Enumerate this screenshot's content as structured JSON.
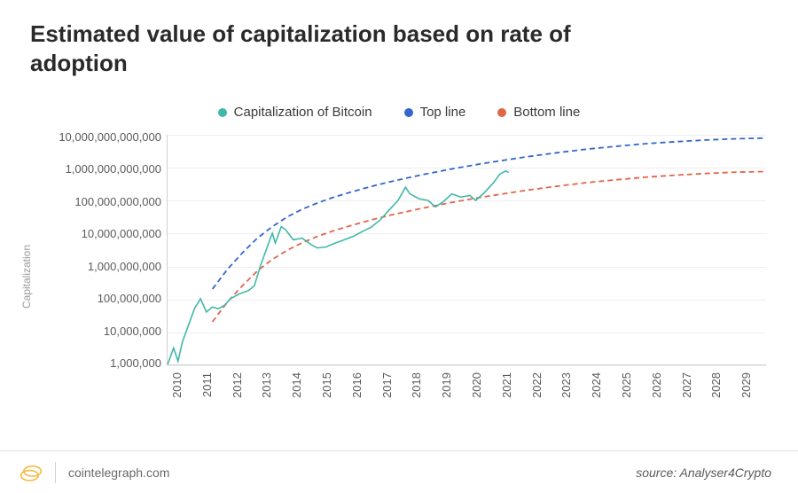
{
  "title": "Estimated value of capitalization based on rate of adoption",
  "legend": {
    "items": [
      {
        "label": "Capitalization of Bitcoin",
        "color": "#3fb8a8"
      },
      {
        "label": "Top line",
        "color": "#3366cc"
      },
      {
        "label": "Bottom line",
        "color": "#e06648"
      }
    ]
  },
  "chart": {
    "type": "line",
    "ylabel": "Capitalization",
    "yscale": "log",
    "ylim_log10": [
      6,
      13
    ],
    "ytick_labels": [
      "10,000,000,000,000",
      "1,000,000,000,000",
      "100,000,000,000",
      "10,000,000,000",
      "1,000,000,000",
      "100,000,000",
      "10,000,000",
      "1,000,000"
    ],
    "xlim": [
      2010,
      2030
    ],
    "xticks": [
      2010,
      2011,
      2012,
      2013,
      2014,
      2015,
      2016,
      2017,
      2018,
      2019,
      2020,
      2021,
      2022,
      2023,
      2024,
      2025,
      2026,
      2027,
      2028,
      2029
    ],
    "grid_color": "#eeeeee",
    "axis_color": "#d0d0d0",
    "background_color": "#ffffff",
    "title_fontsize": 26,
    "tick_fontsize": 13,
    "ylabel_fontsize": 12,
    "ylabel_color": "#9a9a9a",
    "bitcoin": {
      "color": "#3fb8a8",
      "line_width": 1.6,
      "dash": "none",
      "points": [
        [
          2010.0,
          6.0
        ],
        [
          2010.2,
          6.5
        ],
        [
          2010.35,
          6.1
        ],
        [
          2010.5,
          6.7
        ],
        [
          2010.7,
          7.2
        ],
        [
          2010.9,
          7.7
        ],
        [
          2011.1,
          8.0
        ],
        [
          2011.3,
          7.6
        ],
        [
          2011.5,
          7.75
        ],
        [
          2011.7,
          7.7
        ],
        [
          2011.9,
          7.8
        ],
        [
          2012.1,
          8.0
        ],
        [
          2012.4,
          8.15
        ],
        [
          2012.7,
          8.25
        ],
        [
          2012.9,
          8.4
        ],
        [
          2013.1,
          9.0
        ],
        [
          2013.3,
          9.5
        ],
        [
          2013.5,
          10.0
        ],
        [
          2013.6,
          9.7
        ],
        [
          2013.8,
          10.2
        ],
        [
          2013.95,
          10.1
        ],
        [
          2014.2,
          9.8
        ],
        [
          2014.5,
          9.85
        ],
        [
          2014.8,
          9.65
        ],
        [
          2015.0,
          9.55
        ],
        [
          2015.3,
          9.58
        ],
        [
          2015.6,
          9.7
        ],
        [
          2015.9,
          9.8
        ],
        [
          2016.2,
          9.9
        ],
        [
          2016.5,
          10.05
        ],
        [
          2016.8,
          10.18
        ],
        [
          2017.1,
          10.4
        ],
        [
          2017.4,
          10.7
        ],
        [
          2017.7,
          11.0
        ],
        [
          2017.95,
          11.4
        ],
        [
          2018.1,
          11.2
        ],
        [
          2018.4,
          11.05
        ],
        [
          2018.7,
          11.0
        ],
        [
          2018.95,
          10.8
        ],
        [
          2019.2,
          10.95
        ],
        [
          2019.5,
          11.2
        ],
        [
          2019.8,
          11.1
        ],
        [
          2020.1,
          11.15
        ],
        [
          2020.3,
          11.0
        ],
        [
          2020.6,
          11.25
        ],
        [
          2020.9,
          11.55
        ],
        [
          2021.1,
          11.8
        ],
        [
          2021.3,
          11.9
        ],
        [
          2021.4,
          11.85
        ]
      ]
    },
    "top_line": {
      "color": "#3366cc",
      "line_width": 1.8,
      "dash": "6 4",
      "points": [
        [
          2011.5,
          8.3
        ],
        [
          2012.0,
          8.9
        ],
        [
          2012.5,
          9.4
        ],
        [
          2013.0,
          9.85
        ],
        [
          2013.5,
          10.2
        ],
        [
          2014.0,
          10.5
        ],
        [
          2014.5,
          10.73
        ],
        [
          2015.0,
          10.92
        ],
        [
          2015.5,
          11.08
        ],
        [
          2016.0,
          11.22
        ],
        [
          2016.5,
          11.35
        ],
        [
          2017.0,
          11.47
        ],
        [
          2017.5,
          11.58
        ],
        [
          2018.0,
          11.68
        ],
        [
          2018.5,
          11.78
        ],
        [
          2019.0,
          11.87
        ],
        [
          2019.5,
          11.96
        ],
        [
          2020.0,
          12.04
        ],
        [
          2020.5,
          12.12
        ],
        [
          2021.0,
          12.19
        ],
        [
          2022.0,
          12.33
        ],
        [
          2023.0,
          12.45
        ],
        [
          2024.0,
          12.56
        ],
        [
          2025.0,
          12.65
        ],
        [
          2026.0,
          12.73
        ],
        [
          2027.0,
          12.79
        ],
        [
          2028.0,
          12.84
        ],
        [
          2029.0,
          12.88
        ],
        [
          2030.0,
          12.9
        ]
      ]
    },
    "bottom_line": {
      "color": "#e06648",
      "line_width": 1.8,
      "dash": "6 4",
      "points": [
        [
          2011.5,
          7.3
        ],
        [
          2012.0,
          7.9
        ],
        [
          2012.5,
          8.4
        ],
        [
          2013.0,
          8.85
        ],
        [
          2013.5,
          9.2
        ],
        [
          2014.0,
          9.48
        ],
        [
          2014.5,
          9.71
        ],
        [
          2015.0,
          9.9
        ],
        [
          2015.5,
          10.06
        ],
        [
          2016.0,
          10.2
        ],
        [
          2016.5,
          10.33
        ],
        [
          2017.0,
          10.45
        ],
        [
          2017.5,
          10.56
        ],
        [
          2018.0,
          10.66
        ],
        [
          2018.5,
          10.76
        ],
        [
          2019.0,
          10.85
        ],
        [
          2019.5,
          10.94
        ],
        [
          2020.0,
          11.02
        ],
        [
          2020.5,
          11.1
        ],
        [
          2021.0,
          11.17
        ],
        [
          2022.0,
          11.31
        ],
        [
          2023.0,
          11.43
        ],
        [
          2024.0,
          11.54
        ],
        [
          2025.0,
          11.63
        ],
        [
          2026.0,
          11.71
        ],
        [
          2027.0,
          11.77
        ],
        [
          2028.0,
          11.82
        ],
        [
          2029.0,
          11.86
        ],
        [
          2030.0,
          11.88
        ]
      ]
    }
  },
  "footer": {
    "site": "cointelegraph.com",
    "source_prefix": "source: ",
    "source_name": "Analyser4Crypto",
    "logo_color": "#f5b942"
  }
}
